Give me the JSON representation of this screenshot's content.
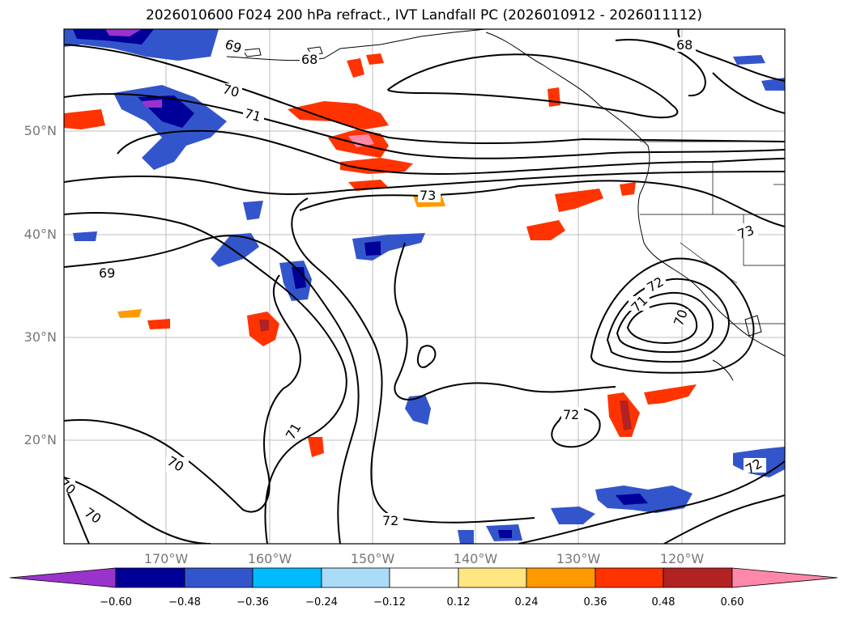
{
  "title": "2026010600 F024 200 hPa refract., IVT Landfall PC (2026010912 - 2026011112)",
  "map": {
    "lat_labels": [
      "50°N",
      "40°N",
      "30°N",
      "20°N"
    ],
    "lon_labels": [
      "170°W",
      "160°W",
      "150°W",
      "140°W",
      "130°W",
      "120°W"
    ],
    "contour_labels": [
      "69",
      "68",
      "70",
      "71",
      "73",
      "69",
      "72",
      "71",
      "70",
      "73",
      "72",
      "72",
      "71",
      "70",
      "70",
      "70",
      "68",
      "72"
    ]
  },
  "colorbar": {
    "ticks": [
      "−0.60",
      "−0.48",
      "−0.36",
      "−0.24",
      "−0.12",
      "0.12",
      "0.24",
      "0.36",
      "0.48",
      "0.60"
    ],
    "colors": [
      "#9933cc",
      "#000099",
      "#3355cc",
      "#00bbff",
      "#aadcf7",
      "#ffffff",
      "#ffe680",
      "#ff9900",
      "#ff3300",
      "#b22222",
      "#ff88aa"
    ]
  }
}
